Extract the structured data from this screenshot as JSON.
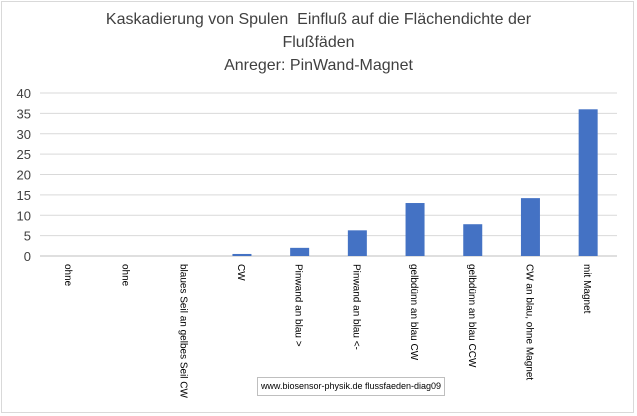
{
  "title_lines": [
    "Kaskadierung von Spulen  Einfluß auf die Flächendichte der",
    "Flußfäden",
    "Anreger: PinWand-Magnet"
  ],
  "watermark": "www.biosensor-physik.de  flussfaeden-diag09",
  "colors": {
    "bar": "#4472c4",
    "grid": "#d9d9d9",
    "text": "#404040"
  },
  "chart_data": {
    "type": "bar",
    "title": "Kaskadierung von Spulen  Einfluß auf die Flächendichte der Flußfäden Anreger: PinWand-Magnet",
    "categories": [
      "ohne",
      "ohne",
      "blaues Seil an gelbes Seil CW",
      "CW",
      "Pinwand an blau >",
      "Pinwand an blau <-",
      "gelbdünn an blau CW",
      "gelbdünn an blau CCW",
      "CW an blau, ohne Magnet",
      "mit Magnet"
    ],
    "values": [
      0,
      0,
      0,
      0.5,
      2,
      6.3,
      13,
      7.8,
      14.2,
      36
    ],
    "ylim": [
      0,
      40
    ],
    "yticks": [
      0,
      5,
      10,
      15,
      20,
      25,
      30,
      35,
      40
    ],
    "xlabel": "",
    "ylabel": "",
    "grid": true,
    "legend": "none"
  }
}
